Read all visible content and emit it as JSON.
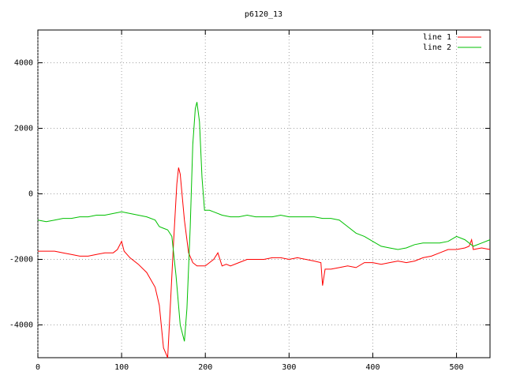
{
  "chart_data": {
    "type": "line",
    "title": "p6120_13",
    "xlim": [
      0,
      540
    ],
    "ylim": [
      -5000,
      5000
    ],
    "xticks": [
      0,
      100,
      200,
      300,
      400,
      500
    ],
    "yticks": [
      -4000,
      -2000,
      0,
      2000,
      4000
    ],
    "grid": true,
    "legend": "top-right",
    "series": [
      {
        "name": "line 1",
        "color": "#ff0000",
        "x": [
          0,
          10,
          20,
          30,
          40,
          50,
          60,
          70,
          80,
          90,
          95,
          100,
          103,
          110,
          120,
          130,
          140,
          145,
          150,
          155,
          158,
          162,
          166,
          168,
          170,
          175,
          180,
          185,
          190,
          200,
          205,
          210,
          215,
          220,
          225,
          230,
          240,
          250,
          260,
          270,
          280,
          290,
          300,
          310,
          320,
          330,
          338,
          340,
          343,
          350,
          360,
          370,
          380,
          390,
          400,
          410,
          420,
          430,
          440,
          450,
          460,
          470,
          480,
          490,
          500,
          510,
          515,
          518,
          520,
          530,
          540
        ],
        "values": [
          -1750,
          -1750,
          -1750,
          -1800,
          -1850,
          -1900,
          -1900,
          -1850,
          -1800,
          -1800,
          -1700,
          -1450,
          -1750,
          -1950,
          -2150,
          -2400,
          -2850,
          -3400,
          -4700,
          -5000,
          -3500,
          -1500,
          300,
          800,
          600,
          -800,
          -1800,
          -2100,
          -2200,
          -2200,
          -2100,
          -2000,
          -1800,
          -2200,
          -2150,
          -2200,
          -2100,
          -2000,
          -2000,
          -2000,
          -1950,
          -1950,
          -2000,
          -1950,
          -2000,
          -2050,
          -2100,
          -2800,
          -2300,
          -2300,
          -2250,
          -2200,
          -2250,
          -2100,
          -2100,
          -2150,
          -2100,
          -2050,
          -2100,
          -2050,
          -1950,
          -1900,
          -1800,
          -1700,
          -1700,
          -1650,
          -1600,
          -1400,
          -1700,
          -1650,
          -1700
        ]
      },
      {
        "name": "line 2",
        "color": "#00c000",
        "x": [
          0,
          10,
          20,
          30,
          40,
          50,
          60,
          70,
          80,
          90,
          100,
          110,
          120,
          130,
          140,
          145,
          150,
          155,
          160,
          165,
          170,
          175,
          178,
          182,
          185,
          188,
          190,
          193,
          196,
          199,
          205,
          210,
          220,
          230,
          240,
          250,
          260,
          270,
          280,
          290,
          300,
          310,
          320,
          330,
          340,
          350,
          360,
          370,
          380,
          390,
          400,
          410,
          420,
          430,
          440,
          450,
          460,
          470,
          480,
          490,
          500,
          510,
          520,
          530,
          540
        ],
        "values": [
          -800,
          -850,
          -800,
          -750,
          -750,
          -700,
          -700,
          -650,
          -650,
          -600,
          -550,
          -600,
          -650,
          -700,
          -800,
          -1000,
          -1050,
          -1100,
          -1300,
          -2500,
          -4000,
          -4500,
          -3500,
          -1000,
          1500,
          2600,
          2800,
          2200,
          500,
          -500,
          -500,
          -550,
          -650,
          -700,
          -700,
          -650,
          -700,
          -700,
          -700,
          -650,
          -700,
          -700,
          -700,
          -700,
          -750,
          -750,
          -800,
          -1000,
          -1200,
          -1300,
          -1450,
          -1600,
          -1650,
          -1700,
          -1650,
          -1550,
          -1500,
          -1500,
          -1500,
          -1450,
          -1300,
          -1400,
          -1600,
          -1500,
          -1400
        ]
      }
    ]
  }
}
